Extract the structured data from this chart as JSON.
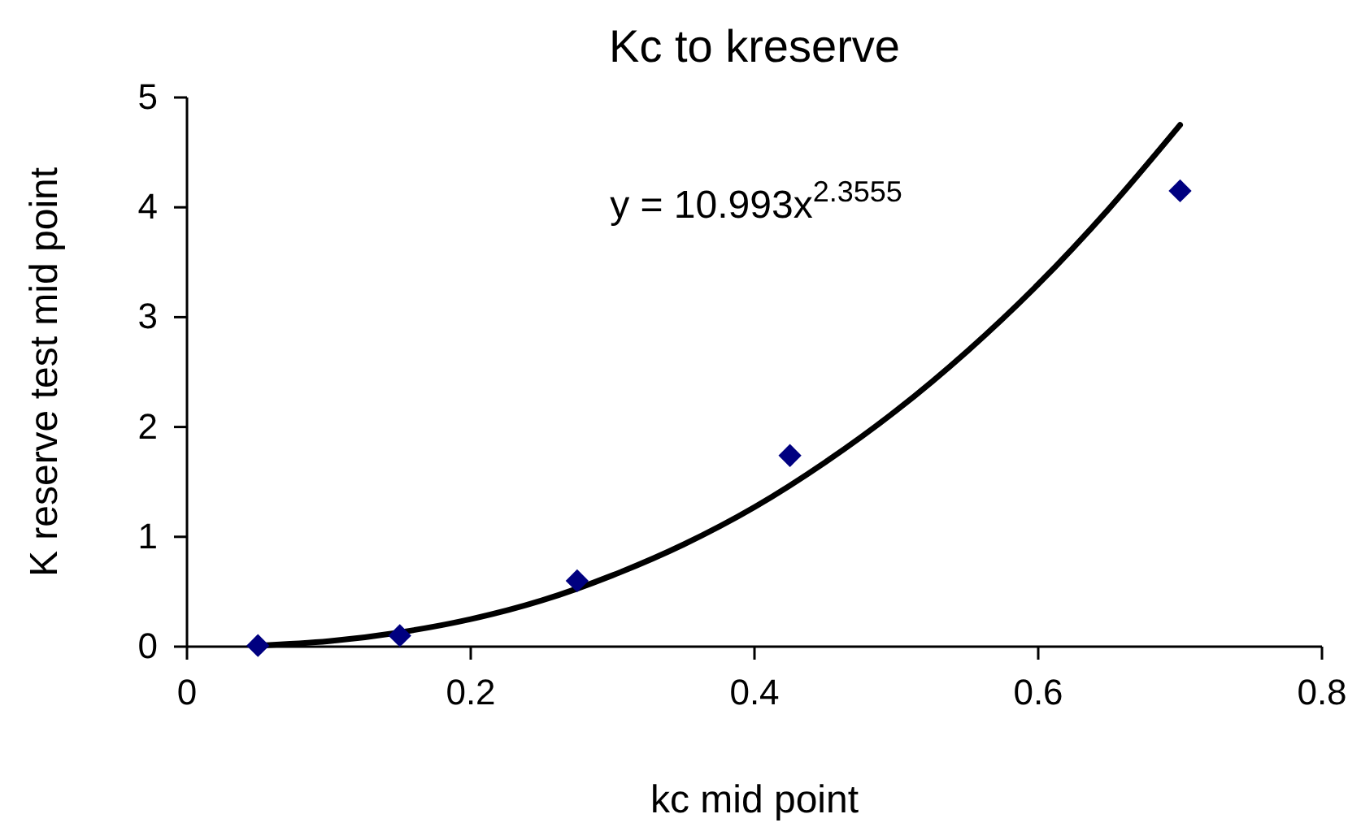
{
  "chart_data": {
    "type": "scatter",
    "title": "Kc to kreserve",
    "xlabel": "kc mid point",
    "ylabel": "K reserve test mid point",
    "xlim": [
      0,
      0.8
    ],
    "xticks": [
      0,
      0.2,
      0.4,
      0.6,
      0.8
    ],
    "ylim": [
      0,
      5
    ],
    "yticks": [
      0,
      1,
      2,
      3,
      4,
      5
    ],
    "grid": false,
    "annotations": [
      "y = 10.993x$^{2.3555}$"
    ],
    "series": [
      {
        "type": "scatter",
        "color": "#000080",
        "marker": "diamond",
        "x": [
          0.05,
          0.15,
          0.275,
          0.425,
          0.7
        ],
        "values": [
          0.01,
          0.1,
          0.6,
          1.74,
          4.15
        ]
      },
      {
        "type": "line",
        "color": "#000000",
        "marker": "none",
        "line_style": "solid",
        "x": [
          0.05,
          0.1,
          0.15,
          0.2,
          0.25,
          0.3,
          0.35,
          0.4,
          0.45,
          0.5,
          0.55,
          0.6,
          0.65,
          0.7
        ],
        "values": [
          0.01,
          0.05,
          0.13,
          0.25,
          0.42,
          0.65,
          0.93,
          1.27,
          1.68,
          2.15,
          2.69,
          3.3,
          3.99,
          4.75
        ]
      }
    ]
  }
}
